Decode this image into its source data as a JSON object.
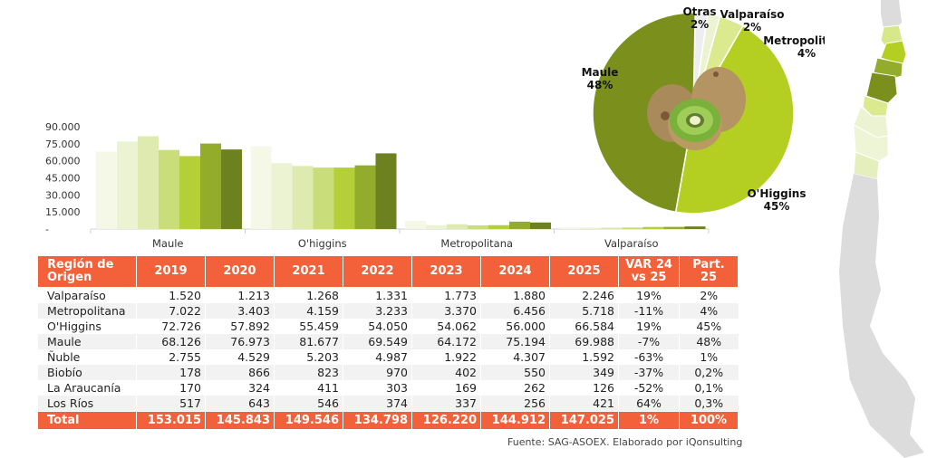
{
  "chart_data": [
    {
      "type": "bar",
      "title": "",
      "xlabel": "",
      "ylabel": "",
      "ylim": [
        0,
        90000
      ],
      "yticks": [
        "-",
        "15.000",
        "30.000",
        "45.000",
        "60.000",
        "75.000",
        "90.000"
      ],
      "ytick_values": [
        0,
        15000,
        30000,
        45000,
        60000,
        75000,
        90000
      ],
      "categories": [
        "Maule",
        "O'higgins",
        "Metropolitana",
        "Valparaíso"
      ],
      "series": [
        {
          "name": "2019",
          "color": "#f5f8e6",
          "values": [
            68126,
            72726,
            7022,
            1520
          ]
        },
        {
          "name": "2020",
          "color": "#ebf3d3",
          "values": [
            76973,
            57892,
            3403,
            1213
          ]
        },
        {
          "name": "2021",
          "color": "#dfeab0",
          "values": [
            81677,
            55459,
            4159,
            1268
          ]
        },
        {
          "name": "2022",
          "color": "#c9de7a",
          "values": [
            69549,
            54050,
            3233,
            1331
          ]
        },
        {
          "name": "2023",
          "color": "#b4cf37",
          "values": [
            64172,
            54062,
            3370,
            1773
          ]
        },
        {
          "name": "2024",
          "color": "#93ac2b",
          "values": [
            75194,
            56000,
            6456,
            1880
          ]
        },
        {
          "name": "2025",
          "color": "#6e8120",
          "values": [
            69988,
            66584,
            5718,
            2246
          ]
        }
      ],
      "grid": false,
      "legend": "none"
    },
    {
      "type": "pie",
      "title": "",
      "slices": [
        {
          "label": "Otras",
          "value": 2,
          "display": "2%",
          "color": "#eeeeee"
        },
        {
          "label": "Valparaíso",
          "value": 2,
          "display": "2%",
          "color": "#ebf3d3"
        },
        {
          "label": "Metropolitana",
          "value": 4,
          "display": "4%",
          "color": "#dbe98f"
        },
        {
          "label": "O'Higgins",
          "value": 45,
          "display": "45%",
          "color": "#b4cf22"
        },
        {
          "label": "Maule",
          "value": 48,
          "display": "48%",
          "color": "#7a8f1c"
        }
      ],
      "center_image": "kiwi-fruit"
    }
  ],
  "table": {
    "headers": [
      "Región de Origen",
      "2019",
      "2020",
      "2021",
      "2022",
      "2023",
      "2024",
      "2025",
      "VAR 24 vs 25",
      "Part. 25"
    ],
    "rows": [
      [
        "Valparaíso",
        "1.520",
        "1.213",
        "1.268",
        "1.331",
        "1.773",
        "1.880",
        "2.246",
        "19%",
        "2%"
      ],
      [
        "Metropolitana",
        "7.022",
        "3.403",
        "4.159",
        "3.233",
        "3.370",
        "6.456",
        "5.718",
        "-11%",
        "4%"
      ],
      [
        "O'Higgins",
        "72.726",
        "57.892",
        "55.459",
        "54.050",
        "54.062",
        "56.000",
        "66.584",
        "19%",
        "45%"
      ],
      [
        "Maule",
        "68.126",
        "76.973",
        "81.677",
        "69.549",
        "64.172",
        "75.194",
        "69.988",
        "-7%",
        "48%"
      ],
      [
        "Ñuble",
        "2.755",
        "4.529",
        "5.203",
        "4.987",
        "1.922",
        "4.307",
        "1.592",
        "-63%",
        "1%"
      ],
      [
        "Biobío",
        "178",
        "866",
        "823",
        "970",
        "402",
        "550",
        "349",
        "-37%",
        "0,2%"
      ],
      [
        "La Araucanía",
        "170",
        "324",
        "411",
        "303",
        "169",
        "262",
        "126",
        "-52%",
        "0,1%"
      ],
      [
        "Los Ríos",
        "517",
        "643",
        "546",
        "374",
        "337",
        "256",
        "421",
        "64%",
        "0,3%"
      ]
    ],
    "total": [
      "Total",
      "153.015",
      "145.843",
      "149.546",
      "134.798",
      "126.220",
      "144.912",
      "147.025",
      "1%",
      "100%"
    ]
  },
  "source": "Fuente: SAG-ASOEX. Elaborado por iQonsulting",
  "colors": {
    "header": "#f26139",
    "alt_row": "#f2f2f2",
    "map_gray": "#dcdcdc"
  }
}
